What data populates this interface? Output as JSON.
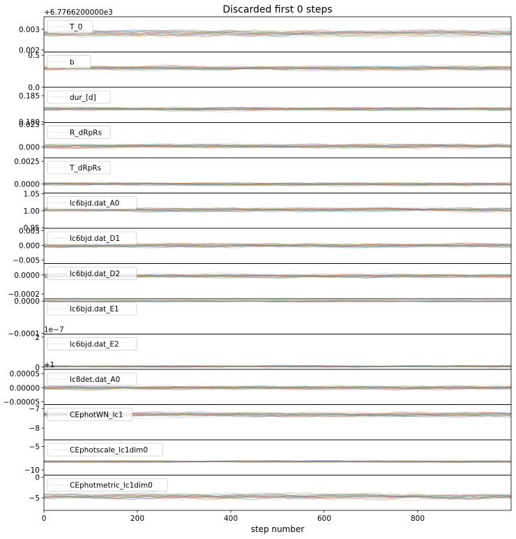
{
  "chart_data": {
    "type": "line",
    "title": "Discarded first 0 steps",
    "xlabel": "step number",
    "xlim": [
      0,
      1000
    ],
    "x_ticks": [
      0,
      200,
      400,
      600,
      800
    ],
    "n_walkers": 32,
    "walker_colors": [
      "#1f77b4",
      "#ff7f0e",
      "#2ca02c",
      "#d62728",
      "#9467bd",
      "#8c564b",
      "#e377c2",
      "#7f7f7f",
      "#bcbd22",
      "#17becf"
    ],
    "panels": [
      {
        "name": "T_0",
        "offset_text": "+6.7766200000e3",
        "ylim": [
          0.0019,
          0.0036
        ],
        "ticks": [
          0.002,
          0.003
        ],
        "tick_labels": [
          "0.002",
          "0.003"
        ],
        "center": 0.0028,
        "spread": 0.0002
      },
      {
        "name": "b",
        "ylim": [
          0.0,
          0.55
        ],
        "ticks": [
          0.0,
          0.5
        ],
        "tick_labels": [
          "0.0",
          "0.5"
        ],
        "center": 0.3,
        "spread": 0.045
      },
      {
        "name": "dur_[d]",
        "ylim": [
          0.1799,
          0.1866
        ],
        "ticks": [
          0.18,
          0.185
        ],
        "tick_labels": [
          "0.180",
          "0.185"
        ],
        "center": 0.1825,
        "spread": 0.0004
      },
      {
        "name": "R_dRpRs",
        "ylim": [
          -0.012,
          0.027
        ],
        "ticks": [
          0.0,
          0.025
        ],
        "tick_labels": [
          "0.000",
          "0.025"
        ],
        "center": 0.001,
        "spread": 0.003
      },
      {
        "name": "T_dRpRs",
        "ylim": [
          -0.001,
          0.0029
        ],
        "ticks": [
          0.0,
          0.0025
        ],
        "tick_labels": [
          "0.0000",
          "0.0025"
        ],
        "center": 0.0,
        "spread": 0.00022
      },
      {
        "name": "lc6bjd.dat_A0",
        "ylim": [
          0.948,
          1.052
        ],
        "ticks": [
          0.95,
          1.0,
          1.05
        ],
        "tick_labels": [
          "0.95",
          "1.00",
          "1.05"
        ],
        "center": 1.003,
        "spread": 0.008
      },
      {
        "name": "lc6bjd.dat_D1",
        "ylim": [
          -0.0062,
          0.0058
        ],
        "ticks": [
          -0.005,
          0.0,
          0.005
        ],
        "tick_labels": [
          "−0.005",
          "0.000",
          "0.005"
        ],
        "center": 0.0,
        "spread": 0.0009
      },
      {
        "name": "lc6bjd.dat_D2",
        "ylim": [
          -0.00025,
          0.00012
        ],
        "ticks": [
          -0.0002,
          0.0
        ],
        "tick_labels": [
          "−0.0002",
          "0.0000"
        ],
        "center": -1e-05,
        "spread": 2.5e-05
      },
      {
        "name": "lc6bjd.dat_E1",
        "ylim": [
          -0.000102,
          7e-06
        ],
        "ticks": [
          -0.0001,
          0.0
        ],
        "tick_labels": [
          "−0.0001",
          "0.0000"
        ],
        "center": 0.0,
        "spread": 2.5e-06
      },
      {
        "name": "lc6bjd.dat_E2",
        "offset_text": "1e−7",
        "ylim": [
          -0.15,
          2.2
        ],
        "ticks": [
          0,
          2
        ],
        "tick_labels": [
          "0",
          "2"
        ],
        "center": 0.05,
        "spread": 0.08
      },
      {
        "name": "lc8det.dat_A0",
        "offset_text": "+1",
        "ylim": [
          -6e-05,
          6.5e-05
        ],
        "ticks": [
          -5e-05,
          0.0,
          5e-05
        ],
        "tick_labels": [
          "−0.00005",
          "0.00000",
          "0.00005"
        ],
        "center": 0.0,
        "spread": 8.5e-06
      },
      {
        "name": "CEphotWN_lc1",
        "ylim": [
          -8.6,
          -6.8
        ],
        "ticks": [
          -8,
          -7
        ],
        "tick_labels": [
          "−8",
          "−7"
        ],
        "center": -7.3,
        "spread": 0.15
      },
      {
        "name": "CEphotscale_lc1dim0",
        "ylim": [
          -11.1,
          -3.6
        ],
        "ticks": [
          -10,
          -5
        ],
        "tick_labels": [
          "−10",
          "−5"
        ],
        "center": -8.2,
        "spread": 0.25
      },
      {
        "name": "CEphotmetric_lc1dim0",
        "ylim": [
          -8.0,
          0.5
        ],
        "ticks": [
          -5,
          0
        ],
        "tick_labels": [
          "−5",
          "0"
        ],
        "center": -4.6,
        "spread": 0.9
      }
    ]
  }
}
